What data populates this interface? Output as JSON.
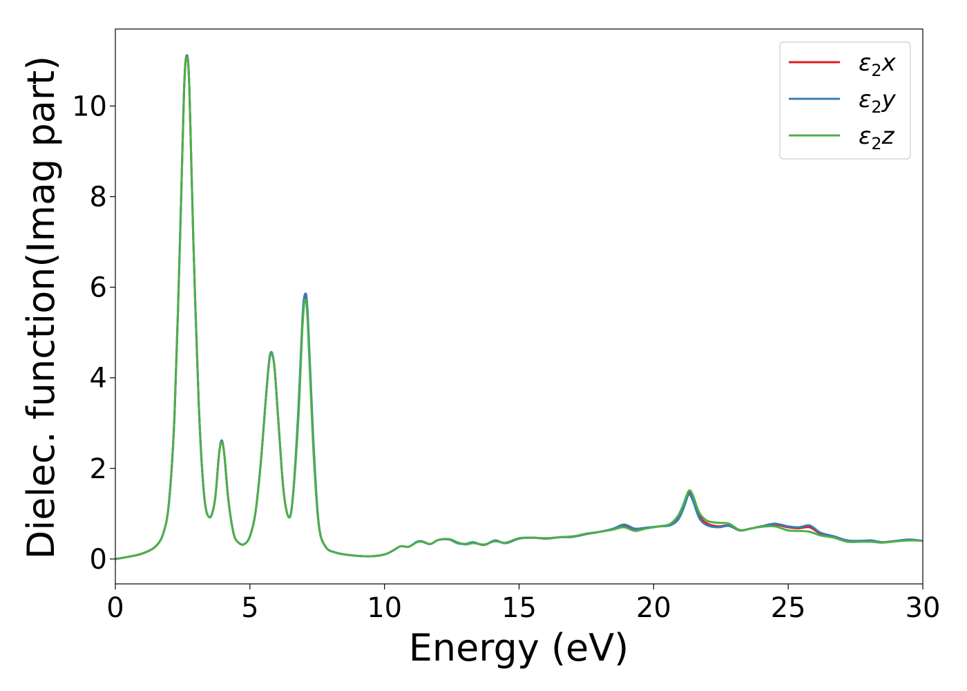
{
  "chart_data": {
    "type": "line",
    "title": "",
    "xlabel": "Energy (eV)",
    "ylabel": "Dielec. function(Imag part)",
    "xlim": [
      0,
      30
    ],
    "ylim": [
      -0.55,
      11.7
    ],
    "xticks": [
      0,
      5,
      10,
      15,
      20,
      25,
      30
    ],
    "yticks": [
      0,
      2,
      4,
      6,
      8,
      10
    ],
    "grid": false,
    "legend_position": "top-right",
    "series": [
      {
        "name": "ε₂x",
        "legend_base": "ε",
        "legend_sub": "2",
        "legend_axis": "x",
        "color": "#e41a1c",
        "points": [
          [
            0,
            0.0
          ],
          [
            0.5,
            0.05
          ],
          [
            1.0,
            0.12
          ],
          [
            1.5,
            0.28
          ],
          [
            1.8,
            0.6
          ],
          [
            2.0,
            1.3
          ],
          [
            2.2,
            3.2
          ],
          [
            2.4,
            7.0
          ],
          [
            2.55,
            10.3
          ],
          [
            2.65,
            11.1
          ],
          [
            2.75,
            10.4
          ],
          [
            2.9,
            7.0
          ],
          [
            3.1,
            3.4
          ],
          [
            3.3,
            1.4
          ],
          [
            3.5,
            0.92
          ],
          [
            3.7,
            1.3
          ],
          [
            3.85,
            2.3
          ],
          [
            3.95,
            2.6
          ],
          [
            4.05,
            2.3
          ],
          [
            4.2,
            1.3
          ],
          [
            4.4,
            0.55
          ],
          [
            4.6,
            0.35
          ],
          [
            4.8,
            0.33
          ],
          [
            5.0,
            0.5
          ],
          [
            5.2,
            1.0
          ],
          [
            5.4,
            2.1
          ],
          [
            5.6,
            3.6
          ],
          [
            5.75,
            4.5
          ],
          [
            5.9,
            4.3
          ],
          [
            6.05,
            3.1
          ],
          [
            6.25,
            1.5
          ],
          [
            6.45,
            0.92
          ],
          [
            6.6,
            1.4
          ],
          [
            6.8,
            3.2
          ],
          [
            6.95,
            5.2
          ],
          [
            7.05,
            5.8
          ],
          [
            7.15,
            5.3
          ],
          [
            7.35,
            2.6
          ],
          [
            7.55,
            0.8
          ],
          [
            7.8,
            0.28
          ],
          [
            8.2,
            0.14
          ],
          [
            8.8,
            0.08
          ],
          [
            9.5,
            0.06
          ],
          [
            10.0,
            0.1
          ],
          [
            10.3,
            0.18
          ],
          [
            10.6,
            0.28
          ],
          [
            10.9,
            0.27
          ],
          [
            11.2,
            0.37
          ],
          [
            11.4,
            0.38
          ],
          [
            11.7,
            0.33
          ],
          [
            12.0,
            0.42
          ],
          [
            12.4,
            0.43
          ],
          [
            12.7,
            0.36
          ],
          [
            13.0,
            0.33
          ],
          [
            13.3,
            0.36
          ],
          [
            13.7,
            0.31
          ],
          [
            14.1,
            0.4
          ],
          [
            14.5,
            0.35
          ],
          [
            15.0,
            0.45
          ],
          [
            15.5,
            0.47
          ],
          [
            16.0,
            0.45
          ],
          [
            16.5,
            0.48
          ],
          [
            17.0,
            0.49
          ],
          [
            17.5,
            0.55
          ],
          [
            18.0,
            0.6
          ],
          [
            18.5,
            0.66
          ],
          [
            18.9,
            0.73
          ],
          [
            19.3,
            0.65
          ],
          [
            19.7,
            0.68
          ],
          [
            20.2,
            0.72
          ],
          [
            20.6,
            0.75
          ],
          [
            20.9,
            0.9
          ],
          [
            21.1,
            1.15
          ],
          [
            21.3,
            1.45
          ],
          [
            21.45,
            1.35
          ],
          [
            21.7,
            0.95
          ],
          [
            22.0,
            0.78
          ],
          [
            22.4,
            0.72
          ],
          [
            22.8,
            0.74
          ],
          [
            23.2,
            0.63
          ],
          [
            23.6,
            0.67
          ],
          [
            24.0,
            0.72
          ],
          [
            24.5,
            0.76
          ],
          [
            25.0,
            0.7
          ],
          [
            25.4,
            0.68
          ],
          [
            25.8,
            0.7
          ],
          [
            26.2,
            0.56
          ],
          [
            26.7,
            0.5
          ],
          [
            27.2,
            0.4
          ],
          [
            27.7,
            0.4
          ],
          [
            28.1,
            0.4
          ],
          [
            28.5,
            0.37
          ],
          [
            29.0,
            0.4
          ],
          [
            29.5,
            0.42
          ],
          [
            30.0,
            0.4
          ]
        ]
      },
      {
        "name": "ε₂y",
        "legend_base": "ε",
        "legend_sub": "2",
        "legend_axis": "y",
        "color": "#377eb8",
        "points": [
          [
            0,
            0.0
          ],
          [
            0.5,
            0.05
          ],
          [
            1.0,
            0.12
          ],
          [
            1.5,
            0.28
          ],
          [
            1.8,
            0.6
          ],
          [
            2.0,
            1.3
          ],
          [
            2.2,
            3.2
          ],
          [
            2.4,
            7.0
          ],
          [
            2.55,
            10.3
          ],
          [
            2.65,
            11.12
          ],
          [
            2.75,
            10.4
          ],
          [
            2.9,
            7.0
          ],
          [
            3.1,
            3.4
          ],
          [
            3.3,
            1.4
          ],
          [
            3.5,
            0.92
          ],
          [
            3.7,
            1.3
          ],
          [
            3.85,
            2.3
          ],
          [
            3.95,
            2.62
          ],
          [
            4.05,
            2.3
          ],
          [
            4.2,
            1.3
          ],
          [
            4.4,
            0.55
          ],
          [
            4.6,
            0.35
          ],
          [
            4.8,
            0.33
          ],
          [
            5.0,
            0.5
          ],
          [
            5.2,
            1.0
          ],
          [
            5.4,
            2.1
          ],
          [
            5.6,
            3.6
          ],
          [
            5.75,
            4.52
          ],
          [
            5.9,
            4.3
          ],
          [
            6.05,
            3.1
          ],
          [
            6.25,
            1.5
          ],
          [
            6.45,
            0.92
          ],
          [
            6.6,
            1.4
          ],
          [
            6.8,
            3.3
          ],
          [
            6.95,
            5.3
          ],
          [
            7.05,
            5.85
          ],
          [
            7.15,
            5.4
          ],
          [
            7.35,
            2.7
          ],
          [
            7.55,
            0.82
          ],
          [
            7.8,
            0.28
          ],
          [
            8.2,
            0.14
          ],
          [
            8.8,
            0.08
          ],
          [
            9.5,
            0.06
          ],
          [
            10.0,
            0.1
          ],
          [
            10.3,
            0.18
          ],
          [
            10.6,
            0.28
          ],
          [
            10.9,
            0.27
          ],
          [
            11.2,
            0.38
          ],
          [
            11.4,
            0.39
          ],
          [
            11.7,
            0.33
          ],
          [
            12.0,
            0.42
          ],
          [
            12.4,
            0.43
          ],
          [
            12.7,
            0.35
          ],
          [
            13.0,
            0.33
          ],
          [
            13.3,
            0.37
          ],
          [
            13.7,
            0.31
          ],
          [
            14.1,
            0.41
          ],
          [
            14.5,
            0.35
          ],
          [
            15.0,
            0.45
          ],
          [
            15.5,
            0.47
          ],
          [
            16.0,
            0.45
          ],
          [
            16.5,
            0.48
          ],
          [
            17.0,
            0.49
          ],
          [
            17.5,
            0.55
          ],
          [
            18.0,
            0.6
          ],
          [
            18.5,
            0.67
          ],
          [
            18.9,
            0.76
          ],
          [
            19.3,
            0.67
          ],
          [
            19.7,
            0.69
          ],
          [
            20.2,
            0.72
          ],
          [
            20.6,
            0.74
          ],
          [
            20.9,
            0.86
          ],
          [
            21.1,
            1.1
          ],
          [
            21.3,
            1.42
          ],
          [
            21.45,
            1.3
          ],
          [
            21.7,
            0.9
          ],
          [
            22.0,
            0.74
          ],
          [
            22.4,
            0.7
          ],
          [
            22.8,
            0.73
          ],
          [
            23.2,
            0.63
          ],
          [
            23.6,
            0.67
          ],
          [
            24.0,
            0.72
          ],
          [
            24.5,
            0.78
          ],
          [
            25.0,
            0.72
          ],
          [
            25.4,
            0.7
          ],
          [
            25.8,
            0.74
          ],
          [
            26.2,
            0.58
          ],
          [
            26.7,
            0.5
          ],
          [
            27.2,
            0.41
          ],
          [
            27.7,
            0.4
          ],
          [
            28.1,
            0.41
          ],
          [
            28.5,
            0.37
          ],
          [
            29.0,
            0.4
          ],
          [
            29.5,
            0.43
          ],
          [
            30.0,
            0.4
          ]
        ]
      },
      {
        "name": "ε₂z",
        "legend_base": "ε",
        "legend_sub": "2",
        "legend_axis": "z",
        "color": "#4daf4a",
        "points": [
          [
            0,
            0.0
          ],
          [
            0.5,
            0.05
          ],
          [
            1.0,
            0.12
          ],
          [
            1.5,
            0.28
          ],
          [
            1.8,
            0.6
          ],
          [
            2.0,
            1.3
          ],
          [
            2.2,
            3.2
          ],
          [
            2.4,
            7.0
          ],
          [
            2.55,
            10.3
          ],
          [
            2.65,
            11.08
          ],
          [
            2.75,
            10.4
          ],
          [
            2.9,
            7.0
          ],
          [
            3.1,
            3.4
          ],
          [
            3.3,
            1.4
          ],
          [
            3.5,
            0.92
          ],
          [
            3.7,
            1.3
          ],
          [
            3.85,
            2.3
          ],
          [
            3.95,
            2.58
          ],
          [
            4.05,
            2.3
          ],
          [
            4.2,
            1.3
          ],
          [
            4.4,
            0.55
          ],
          [
            4.6,
            0.35
          ],
          [
            4.8,
            0.33
          ],
          [
            5.0,
            0.5
          ],
          [
            5.2,
            1.0
          ],
          [
            5.4,
            2.1
          ],
          [
            5.6,
            3.6
          ],
          [
            5.75,
            4.48
          ],
          [
            5.9,
            4.3
          ],
          [
            6.05,
            3.1
          ],
          [
            6.25,
            1.5
          ],
          [
            6.45,
            0.92
          ],
          [
            6.6,
            1.4
          ],
          [
            6.8,
            3.1
          ],
          [
            6.95,
            5.1
          ],
          [
            7.05,
            5.72
          ],
          [
            7.15,
            5.2
          ],
          [
            7.35,
            2.5
          ],
          [
            7.55,
            0.78
          ],
          [
            7.8,
            0.28
          ],
          [
            8.2,
            0.14
          ],
          [
            8.8,
            0.08
          ],
          [
            9.5,
            0.06
          ],
          [
            10.0,
            0.1
          ],
          [
            10.3,
            0.18
          ],
          [
            10.6,
            0.28
          ],
          [
            10.9,
            0.27
          ],
          [
            11.2,
            0.37
          ],
          [
            11.4,
            0.38
          ],
          [
            11.7,
            0.33
          ],
          [
            12.0,
            0.42
          ],
          [
            12.4,
            0.44
          ],
          [
            12.7,
            0.37
          ],
          [
            13.0,
            0.32
          ],
          [
            13.3,
            0.35
          ],
          [
            13.7,
            0.32
          ],
          [
            14.1,
            0.39
          ],
          [
            14.5,
            0.36
          ],
          [
            15.0,
            0.46
          ],
          [
            15.5,
            0.47
          ],
          [
            16.0,
            0.46
          ],
          [
            16.5,
            0.48
          ],
          [
            17.0,
            0.5
          ],
          [
            17.5,
            0.56
          ],
          [
            18.0,
            0.6
          ],
          [
            18.5,
            0.65
          ],
          [
            18.9,
            0.7
          ],
          [
            19.3,
            0.62
          ],
          [
            19.7,
            0.67
          ],
          [
            20.2,
            0.72
          ],
          [
            20.6,
            0.77
          ],
          [
            20.9,
            0.95
          ],
          [
            21.1,
            1.2
          ],
          [
            21.3,
            1.5
          ],
          [
            21.45,
            1.42
          ],
          [
            21.7,
            1.02
          ],
          [
            22.0,
            0.84
          ],
          [
            22.4,
            0.8
          ],
          [
            22.8,
            0.78
          ],
          [
            23.2,
            0.64
          ],
          [
            23.6,
            0.67
          ],
          [
            24.0,
            0.71
          ],
          [
            24.5,
            0.72
          ],
          [
            25.0,
            0.63
          ],
          [
            25.4,
            0.62
          ],
          [
            25.8,
            0.6
          ],
          [
            26.2,
            0.52
          ],
          [
            26.7,
            0.47
          ],
          [
            27.2,
            0.38
          ],
          [
            27.7,
            0.38
          ],
          [
            28.1,
            0.38
          ],
          [
            28.5,
            0.36
          ],
          [
            29.0,
            0.39
          ],
          [
            29.5,
            0.41
          ],
          [
            30.0,
            0.4
          ]
        ]
      }
    ]
  }
}
